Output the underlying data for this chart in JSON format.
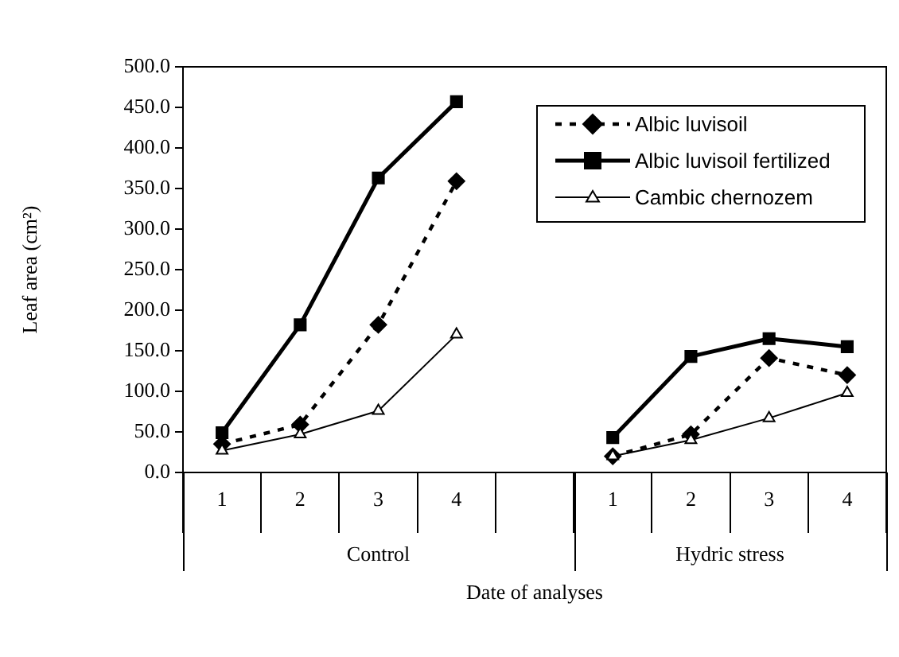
{
  "chart_data": {
    "type": "line",
    "xlabel": "Date of analyses",
    "ylabel": "Leaf area (cm²)",
    "categories": [
      "1",
      "2",
      "3",
      "4",
      null,
      "1",
      "2",
      "3",
      "4"
    ],
    "annotations": [
      "Control",
      "Hydric stress"
    ],
    "ylim": [
      0,
      500
    ],
    "yticks": [
      {
        "value": 0,
        "label": "0.0"
      },
      {
        "value": 50,
        "label": "50.0"
      },
      {
        "value": 100,
        "label": "100.0"
      },
      {
        "value": 150,
        "label": "150.0"
      },
      {
        "value": 200,
        "label": "200.0"
      },
      {
        "value": 250,
        "label": "250.0"
      },
      {
        "value": 300,
        "label": "300.0"
      },
      {
        "value": 350,
        "label": "350.0"
      },
      {
        "value": 400,
        "label": "400.0"
      },
      {
        "value": 450,
        "label": "450.0"
      },
      {
        "value": 500,
        "label": "500.0"
      }
    ],
    "legend": "top right",
    "series": [
      {
        "name": "Albic luvisoil",
        "color": "#000000",
        "marker": "diamond",
        "line_style": "dashed",
        "values": [
          35,
          59,
          182,
          359,
          null,
          20,
          47,
          141,
          120
        ]
      },
      {
        "name": "Albic luvisoil fertilized",
        "color": "#000000",
        "marker": "square",
        "line_style": "solid",
        "values": [
          49,
          182,
          363,
          457,
          null,
          43,
          143,
          165,
          155
        ]
      },
      {
        "name": "Cambic chernozem",
        "color": "#000000",
        "marker": "triangle",
        "line_style": "solid",
        "values": [
          27,
          47,
          76,
          170,
          null,
          20,
          40,
          67,
          98
        ]
      }
    ]
  }
}
